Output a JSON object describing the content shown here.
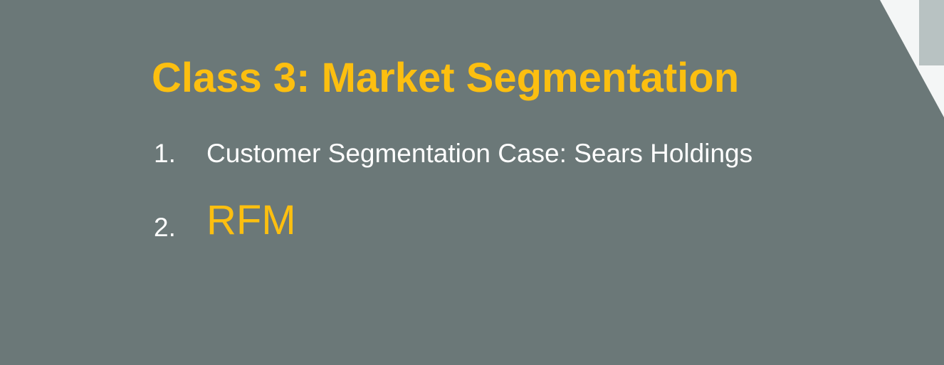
{
  "slide": {
    "title": "Class 3: Market Segmentation",
    "items": [
      {
        "number": "1.",
        "text": "Customer Segmentation Case: Sears Holdings"
      },
      {
        "number": "2.",
        "text": "RFM"
      }
    ]
  },
  "colors": {
    "background": "#6b7878",
    "accent": "#fcbf10",
    "text": "#ffffff",
    "corner_light": "#f4f6f6",
    "corner_strip": "#b8c2c2"
  }
}
